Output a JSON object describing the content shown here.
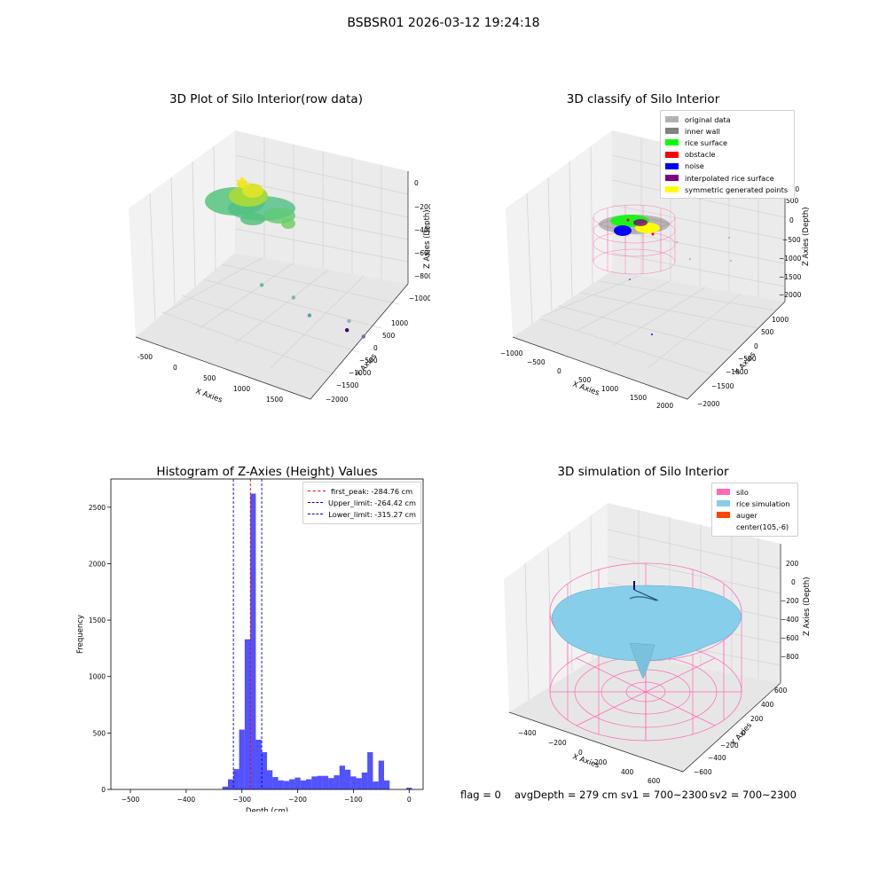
{
  "suptitle": "BSBSR01 2026-03-12 19:24:18",
  "panel1": {
    "title": "3D Plot of Silo Interior(row data)",
    "xlabel": "X Axies",
    "ylabel": "Y Axies",
    "zlabel": "Z Axies (Depth)",
    "xticks": [
      "-500",
      "0",
      "500",
      "1000",
      "1500"
    ],
    "yticks": [
      "1000",
      "500",
      "0",
      "−500",
      "−1000",
      "−1500",
      "−2000"
    ],
    "zticks": [
      "0",
      "−200",
      "−400",
      "−600",
      "−800",
      "−1000"
    ],
    "outliers": [
      {
        "x": 560,
        "y": -200,
        "z": -520,
        "color": "#5cc090"
      },
      {
        "x": 900,
        "y": -500,
        "z": -620,
        "color": "#7fb8a0"
      },
      {
        "x": 1050,
        "y": -700,
        "z": -780,
        "color": "#5a9fb0"
      },
      {
        "x": 1550,
        "y": -900,
        "z": -770,
        "color": "#9ab0b8"
      },
      {
        "x": 1700,
        "y": -1050,
        "z": -900,
        "color": "#6a70a8"
      },
      {
        "x": 1300,
        "y": -1400,
        "z": -1000,
        "color": "#440154"
      }
    ]
  },
  "panel2": {
    "title": "3D classify of Silo Interior",
    "xlabel": "X Axies",
    "ylabel": "Y Axies",
    "zlabel": "Z Axies (Depth)",
    "xticks": [
      "−1000",
      "−500",
      "0",
      "500",
      "1000",
      "1500",
      "2000"
    ],
    "yticks": [
      "1000",
      "500",
      "0",
      "−500",
      "−1000",
      "−1500",
      "−2000"
    ],
    "zticks": [
      "1000",
      "500",
      "0",
      "−500",
      "−1000",
      "−1500",
      "−2000"
    ],
    "legend": [
      {
        "label": "original data",
        "color": "#b3b3b3"
      },
      {
        "label": "inner wall",
        "color": "#808080"
      },
      {
        "label": "rice surface",
        "color": "#00ff00"
      },
      {
        "label": "obstacle",
        "color": "#ff0000"
      },
      {
        "label": "noise",
        "color": "#0000ff"
      },
      {
        "label": "interpolated rice surface",
        "color": "#800080"
      },
      {
        "label": "symmetric generated points",
        "color": "#ffff00"
      }
    ]
  },
  "panel3": {
    "title": "Histogram of Z-Axies (Height) Values",
    "legend": [
      {
        "label": "first_peak: -284.76 cm",
        "color": "#ff0000"
      },
      {
        "label": "Upper_limit: -264.42 cm",
        "color": "#0000cc"
      },
      {
        "label": "Lower_limit: -315.27 cm",
        "color": "#0000cc"
      }
    ]
  },
  "panel4": {
    "title": "3D simulation of Silo Interior",
    "xlabel": "X Axies",
    "ylabel": "Y Axies",
    "zlabel": "Z Axies (Depth)",
    "xticks": [
      "−400",
      "−200",
      "0",
      "200",
      "400",
      "600"
    ],
    "yticks": [
      "600",
      "400",
      "200",
      "0",
      "−200",
      "−400",
      "−600"
    ],
    "zticks": [
      "200",
      "0",
      "−200",
      "−400",
      "−600",
      "−800"
    ],
    "legend": [
      {
        "label": "silo",
        "color": "#ff69b4"
      },
      {
        "label": "rice simulation",
        "color": "#87ceeb"
      },
      {
        "label": "auger",
        "color": "#ff4500"
      },
      {
        "label": "center(105,-6)",
        "color": "transparent"
      }
    ]
  },
  "footer": {
    "flag": "flag = 0",
    "avg_depth": "avgDepth = 279 cm",
    "sv1": "sv1 = 700~2300",
    "sv2": "sv2 = 700~2300"
  },
  "chart_data": [
    {
      "type": "scatter",
      "title": "3D Plot of Silo Interior(row data)",
      "xlabel": "X Axies",
      "ylabel": "Y Axies",
      "zlabel": "Z Axies (Depth)",
      "xlim": [
        -700,
        1900
      ],
      "ylim": [
        -2100,
        1200
      ],
      "zlim": [
        -1050,
        50
      ],
      "colormap": "viridis",
      "series": [
        {
          "x": [
            560,
            900,
            1050,
            1550,
            1700,
            1300
          ],
          "y": [
            -200,
            -500,
            -700,
            -900,
            -1050,
            -1400
          ],
          "z": [
            -520,
            -620,
            -780,
            -770,
            -900,
            -1000
          ]
        }
      ]
    },
    {
      "type": "scatter",
      "title": "3D classify of Silo Interior",
      "xlabel": "X Axies",
      "ylabel": "Y Axies",
      "zlabel": "Z Axies (Depth)",
      "xlim": [
        -1100,
        2100
      ],
      "ylim": [
        -2100,
        1200
      ],
      "zlim": [
        -2100,
        1100
      ],
      "series": [
        {
          "name": "original data"
        },
        {
          "name": "inner wall"
        },
        {
          "name": "rice surface"
        },
        {
          "name": "obstacle"
        },
        {
          "name": "noise"
        },
        {
          "name": "interpolated rice surface"
        },
        {
          "name": "symmetric generated points"
        }
      ]
    },
    {
      "type": "bar",
      "title": "Histogram of Z-Axies (Height) Values",
      "xlabel": "Depth (cm)",
      "ylabel": "Frequency",
      "xlim": [
        -535,
        25
      ],
      "ylim": [
        0,
        2750
      ],
      "xticks": [
        -500,
        -400,
        -300,
        -200,
        -100,
        0
      ],
      "yticks": [
        0,
        500,
        1000,
        1500,
        2000,
        2500
      ],
      "bin_width": 10,
      "bin_starts": [
        -335,
        -325,
        -315,
        -305,
        -295,
        -285,
        -275,
        -265,
        -255,
        -245,
        -235,
        -225,
        -215,
        -205,
        -195,
        -185,
        -175,
        -165,
        -155,
        -145,
        -135,
        -125,
        -115,
        -105,
        -95,
        -85,
        -75,
        -65,
        -55,
        -45,
        -35,
        -25,
        -15,
        -5
      ],
      "values": [
        25,
        90,
        180,
        530,
        1330,
        2620,
        440,
        330,
        170,
        110,
        80,
        75,
        90,
        105,
        80,
        90,
        115,
        120,
        120,
        100,
        125,
        210,
        175,
        115,
        100,
        150,
        330,
        70,
        255,
        80,
        0,
        0,
        0,
        15
      ],
      "color": "#0000ff",
      "lines": [
        {
          "name": "first_peak: -284.76 cm",
          "x": -284.76,
          "color": "#ff0000"
        },
        {
          "name": "Upper_limit: -264.42 cm",
          "x": -264.42,
          "color": "#0000cc"
        },
        {
          "name": "Lower_limit: -315.27 cm",
          "x": -315.27,
          "color": "#0000cc"
        }
      ]
    },
    {
      "type": "area",
      "title": "3D simulation of Silo Interior",
      "xlabel": "X Axies",
      "ylabel": "Y Axies",
      "zlabel": "Z Axies (Depth)",
      "xlim": [
        -500,
        750
      ],
      "ylim": [
        -700,
        700
      ],
      "zlim": [
        -950,
        350
      ],
      "series": [
        {
          "name": "silo",
          "color": "#ff69b4"
        },
        {
          "name": "rice simulation",
          "color": "#87ceeb"
        },
        {
          "name": "auger",
          "color": "#ff4500"
        },
        {
          "name": "center(105,-6)"
        }
      ]
    }
  ]
}
